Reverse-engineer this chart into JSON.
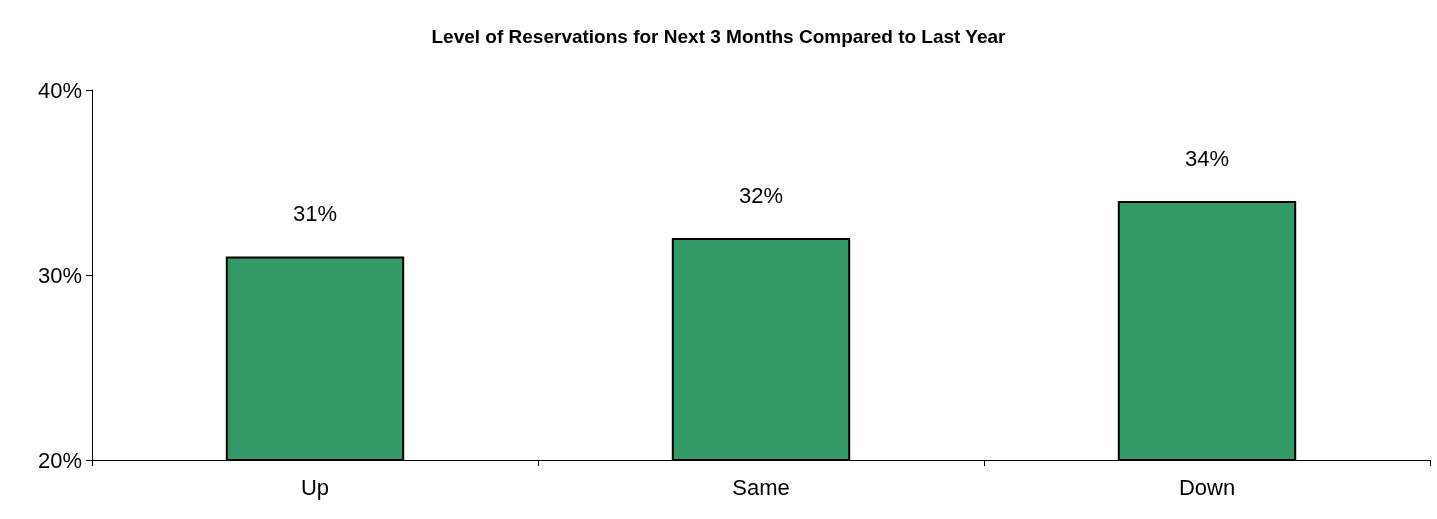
{
  "chart_data": {
    "type": "bar",
    "title": "Level of Reservations for Next 3 Months Compared to Last Year",
    "categories": [
      "Up",
      "Same",
      "Down"
    ],
    "values": [
      31,
      32,
      34
    ],
    "value_labels": [
      "31%",
      "32%",
      "34%"
    ],
    "color": "#339966",
    "ylim": [
      20,
      40
    ],
    "yticks": [
      {
        "value": 20,
        "label": "20%"
      },
      {
        "value": 30,
        "label": "30%"
      },
      {
        "value": 40,
        "label": "40%"
      }
    ],
    "grid": false
  }
}
